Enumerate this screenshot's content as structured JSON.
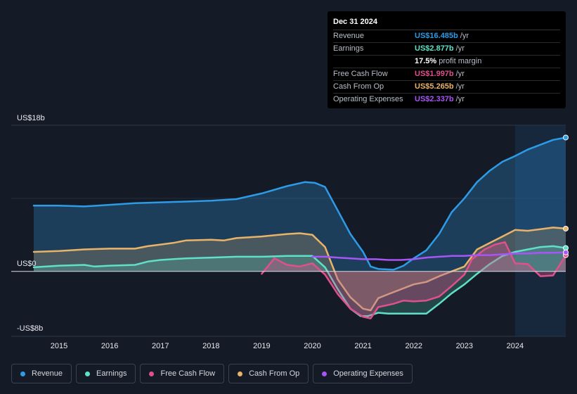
{
  "tooltip": {
    "date": "Dec 31 2024",
    "rows": [
      {
        "label": "Revenue",
        "value": "US$16.485b",
        "unit": "/yr",
        "color": "#2d9be6"
      },
      {
        "label": "Earnings",
        "value": "US$2.877b",
        "unit": "/yr",
        "color": "#5fe0c8"
      },
      {
        "label": "",
        "value": "17.5%",
        "unit": "profit margin",
        "color": "#ffffff"
      },
      {
        "label": "Free Cash Flow",
        "value": "US$1.997b",
        "unit": "/yr",
        "color": "#e0508c"
      },
      {
        "label": "Cash From Op",
        "value": "US$5.265b",
        "unit": "/yr",
        "color": "#e9b46a"
      },
      {
        "label": "Operating Expenses",
        "value": "US$2.337b",
        "unit": "/yr",
        "color": "#a855f7"
      }
    ]
  },
  "legend": [
    {
      "label": "Revenue",
      "color": "#2d9be6"
    },
    {
      "label": "Earnings",
      "color": "#5fe0c8"
    },
    {
      "label": "Free Cash Flow",
      "color": "#e0508c"
    },
    {
      "label": "Cash From Op",
      "color": "#e9b46a"
    },
    {
      "label": "Operating Expenses",
      "color": "#a855f7"
    }
  ],
  "chart_data": {
    "type": "area",
    "y_labels": {
      "top": "US$18b",
      "zero": "US$0",
      "bottom": "-US$8b"
    },
    "ylim": [
      -8,
      18
    ],
    "xlim": [
      2014.5,
      2025.0
    ],
    "x_ticks": [
      "2015",
      "2016",
      "2017",
      "2018",
      "2019",
      "2020",
      "2021",
      "2022",
      "2023",
      "2024"
    ],
    "highlight_from": 2024.0,
    "series": [
      {
        "name": "Revenue",
        "color": "#2d9be6",
        "fill": true,
        "points": [
          [
            2014.5,
            8.1
          ],
          [
            2015.0,
            8.1
          ],
          [
            2015.5,
            8.0
          ],
          [
            2016.0,
            8.2
          ],
          [
            2016.5,
            8.4
          ],
          [
            2017.0,
            8.5
          ],
          [
            2017.5,
            8.6
          ],
          [
            2018.0,
            8.7
          ],
          [
            2018.5,
            8.9
          ],
          [
            2019.0,
            9.6
          ],
          [
            2019.5,
            10.5
          ],
          [
            2019.85,
            11.0
          ],
          [
            2020.05,
            10.9
          ],
          [
            2020.25,
            10.4
          ],
          [
            2020.5,
            7.5
          ],
          [
            2020.75,
            4.6
          ],
          [
            2021.0,
            2.4
          ],
          [
            2021.15,
            0.6
          ],
          [
            2021.3,
            0.3
          ],
          [
            2021.6,
            0.2
          ],
          [
            2021.8,
            0.7
          ],
          [
            2022.0,
            1.6
          ],
          [
            2022.25,
            2.6
          ],
          [
            2022.5,
            4.6
          ],
          [
            2022.75,
            7.3
          ],
          [
            2023.0,
            9.0
          ],
          [
            2023.25,
            11.0
          ],
          [
            2023.5,
            12.4
          ],
          [
            2023.75,
            13.5
          ],
          [
            2024.0,
            14.2
          ],
          [
            2024.25,
            15.0
          ],
          [
            2024.5,
            15.6
          ],
          [
            2024.75,
            16.2
          ],
          [
            2025.0,
            16.485
          ]
        ]
      },
      {
        "name": "Earnings",
        "color": "#5fe0c8",
        "fill": true,
        "points": [
          [
            2014.5,
            0.5
          ],
          [
            2015.0,
            0.7
          ],
          [
            2015.5,
            0.8
          ],
          [
            2015.7,
            0.6
          ],
          [
            2016.0,
            0.7
          ],
          [
            2016.5,
            0.8
          ],
          [
            2016.75,
            1.2
          ],
          [
            2017.0,
            1.4
          ],
          [
            2017.5,
            1.6
          ],
          [
            2018.0,
            1.7
          ],
          [
            2018.5,
            1.8
          ],
          [
            2019.0,
            1.8
          ],
          [
            2019.5,
            1.9
          ],
          [
            2020.0,
            1.9
          ],
          [
            2020.25,
            0.5
          ],
          [
            2020.5,
            -2.2
          ],
          [
            2020.75,
            -4.6
          ],
          [
            2020.95,
            -5.5
          ],
          [
            2021.1,
            -5.5
          ],
          [
            2021.3,
            -5.1
          ],
          [
            2021.5,
            -5.2
          ],
          [
            2022.0,
            -5.2
          ],
          [
            2022.25,
            -5.2
          ],
          [
            2022.5,
            -4.0
          ],
          [
            2022.75,
            -2.7
          ],
          [
            2023.0,
            -1.6
          ],
          [
            2023.25,
            -0.3
          ],
          [
            2023.5,
            0.9
          ],
          [
            2023.75,
            1.9
          ],
          [
            2024.0,
            2.4
          ],
          [
            2024.25,
            2.7
          ],
          [
            2024.5,
            3.0
          ],
          [
            2024.75,
            3.1
          ],
          [
            2025.0,
            2.877
          ]
        ]
      },
      {
        "name": "Free Cash Flow",
        "color": "#e0508c",
        "fill": true,
        "points": [
          [
            2019.0,
            -0.3
          ],
          [
            2019.25,
            1.6
          ],
          [
            2019.5,
            0.8
          ],
          [
            2019.75,
            0.6
          ],
          [
            2020.0,
            1.0
          ],
          [
            2020.25,
            -0.4
          ],
          [
            2020.5,
            -2.8
          ],
          [
            2020.75,
            -4.6
          ],
          [
            2021.0,
            -5.6
          ],
          [
            2021.15,
            -5.8
          ],
          [
            2021.3,
            -4.4
          ],
          [
            2021.6,
            -4.0
          ],
          [
            2021.8,
            -3.6
          ],
          [
            2022.0,
            -3.7
          ],
          [
            2022.25,
            -3.6
          ],
          [
            2022.5,
            -3.1
          ],
          [
            2022.75,
            -1.8
          ],
          [
            2023.0,
            -0.4
          ],
          [
            2023.15,
            1.5
          ],
          [
            2023.4,
            2.7
          ],
          [
            2023.6,
            3.3
          ],
          [
            2023.8,
            3.6
          ],
          [
            2024.0,
            1.0
          ],
          [
            2024.25,
            0.9
          ],
          [
            2024.5,
            -0.6
          ],
          [
            2024.75,
            -0.5
          ],
          [
            2025.0,
            1.997
          ]
        ]
      },
      {
        "name": "Cash From Op",
        "color": "#e9b46a",
        "fill": true,
        "points": [
          [
            2014.5,
            2.4
          ],
          [
            2015.0,
            2.5
          ],
          [
            2015.5,
            2.7
          ],
          [
            2016.0,
            2.8
          ],
          [
            2016.5,
            2.8
          ],
          [
            2016.75,
            3.1
          ],
          [
            2017.0,
            3.3
          ],
          [
            2017.25,
            3.5
          ],
          [
            2017.5,
            3.8
          ],
          [
            2018.0,
            3.9
          ],
          [
            2018.25,
            3.8
          ],
          [
            2018.5,
            4.1
          ],
          [
            2019.0,
            4.3
          ],
          [
            2019.5,
            4.6
          ],
          [
            2019.75,
            4.7
          ],
          [
            2020.0,
            4.5
          ],
          [
            2020.25,
            3.0
          ],
          [
            2020.5,
            -1.0
          ],
          [
            2020.75,
            -3.2
          ],
          [
            2021.0,
            -4.6
          ],
          [
            2021.15,
            -4.8
          ],
          [
            2021.3,
            -3.3
          ],
          [
            2021.5,
            -2.8
          ],
          [
            2022.0,
            -1.6
          ],
          [
            2022.25,
            -1.3
          ],
          [
            2022.5,
            -0.6
          ],
          [
            2022.75,
            0.0
          ],
          [
            2023.0,
            0.6
          ],
          [
            2023.25,
            2.7
          ],
          [
            2023.5,
            3.5
          ],
          [
            2023.75,
            4.3
          ],
          [
            2024.0,
            5.1
          ],
          [
            2024.25,
            5.0
          ],
          [
            2024.5,
            5.2
          ],
          [
            2024.75,
            5.4
          ],
          [
            2025.0,
            5.265
          ]
        ]
      },
      {
        "name": "Operating Expenses",
        "color": "#a855f7",
        "fill": false,
        "points": [
          [
            2020.0,
            1.8
          ],
          [
            2020.25,
            1.8
          ],
          [
            2020.5,
            1.7
          ],
          [
            2020.75,
            1.6
          ],
          [
            2021.0,
            1.5
          ],
          [
            2021.25,
            1.5
          ],
          [
            2021.5,
            1.4
          ],
          [
            2021.75,
            1.4
          ],
          [
            2022.0,
            1.5
          ],
          [
            2022.25,
            1.7
          ],
          [
            2022.5,
            1.8
          ],
          [
            2022.75,
            1.9
          ],
          [
            2023.0,
            1.9
          ],
          [
            2023.25,
            2.0
          ],
          [
            2023.5,
            2.0
          ],
          [
            2023.75,
            2.1
          ],
          [
            2024.0,
            2.2
          ],
          [
            2024.25,
            2.2
          ],
          [
            2024.5,
            2.3
          ],
          [
            2024.75,
            2.3
          ],
          [
            2025.0,
            2.337
          ]
        ]
      }
    ]
  }
}
